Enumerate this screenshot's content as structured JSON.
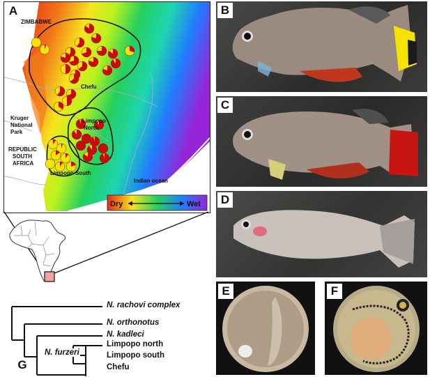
{
  "panels": {
    "a": "A",
    "b": "B",
    "c": "C",
    "d": "D",
    "e": "E",
    "f": "F",
    "g": "G"
  },
  "map": {
    "labels": {
      "zimbabwe": "ZIMBABWE",
      "chefu": "Chefu",
      "kruger": [
        "Kruger",
        "National",
        "Park"
      ],
      "limpopo_north": [
        "Limpopo",
        "North"
      ],
      "south_africa": [
        "REPUBLIC",
        "SOUTH",
        "AFRICA"
      ],
      "limpopo_south": "Limpopo South",
      "indian_ocean": "Indian ocean"
    },
    "legend": {
      "dry": "Dry",
      "wet": "Wet"
    }
  },
  "tree": {
    "taxa": [
      "N. rachovi complex",
      "N. orthonotus",
      "N. kadleci",
      "Limpopo north",
      "Limpopo south",
      "Chefu"
    ],
    "node_label": "N. furzeri"
  },
  "colors": {
    "dry": "#e62e16",
    "mid": "#f6ff1e",
    "wet_green": "#25d05c",
    "wet_blue": "#1f7dff",
    "wet_purple": "#9824d8",
    "pie_red": "#c60d0d",
    "pie_yellow": "#f5e300",
    "tail_yellow": "#ffe100",
    "tail_red": "#c91414"
  }
}
